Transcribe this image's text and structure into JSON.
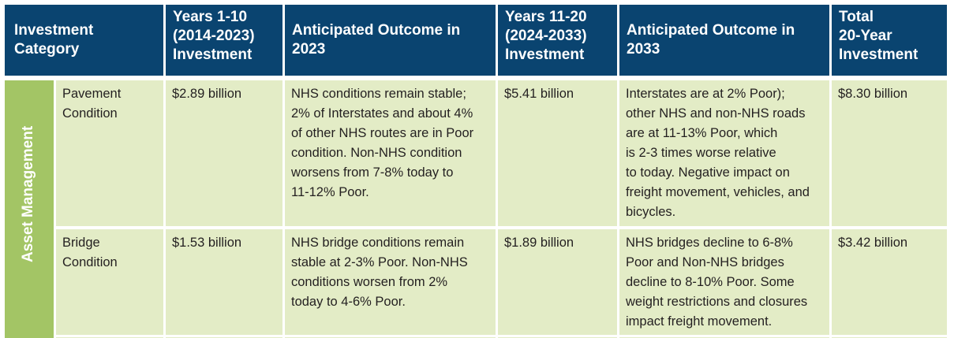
{
  "table": {
    "headers": [
      "Investment\nCategory",
      "Years 1-10\n(2014-2023)\nInvestment",
      "Anticipated Outcome in\n2023",
      "Years 11-20\n(2024-2033)\nInvestment",
      "Anticipated Outcome in\n2033",
      "Total\n20-Year\nInvestment"
    ],
    "group_label": "Asset Management",
    "rows": [
      {
        "subcategory": "Pavement\nCondition",
        "years_1_10": "$2.89 billion",
        "outcome_2023": "NHS conditions remain stable;\n2% of Interstates and about 4%\nof other NHS routes are in Poor\ncondition. Non-NHS condition\nworsens from 7-8% today to\n11-12% Poor.",
        "years_11_20": "$5.41 billion",
        "outcome_2033": "Interstates are at 2% Poor);\nother NHS and non-NHS roads\nare at 11-13% Poor, which\nis 2-3 times worse relative\nto today. Negative impact on\nfreight movement, vehicles, and\nbicycles.",
        "total": "$8.30 billion"
      },
      {
        "subcategory": "Bridge\nCondition",
        "years_1_10": "$1.53 billion",
        "outcome_2023": "NHS bridge conditions remain\nstable at 2-3% Poor. Non-NHS\nconditions worsen from 2%\ntoday to 4-6% Poor.",
        "years_11_20": "$1.89 billion",
        "outcome_2033": "NHS bridges decline to 6-8%\nPoor and Non-NHS bridges\ndecline to 8-10% Poor. Some\nweight restrictions and closures\nimpact freight movement.",
        "total": "$3.42 billion"
      }
    ]
  },
  "colors": {
    "header_bg": "#0a4470",
    "cell_bg": "#e3ecc6",
    "group_band": "#a3c565",
    "text": "#231f20"
  }
}
